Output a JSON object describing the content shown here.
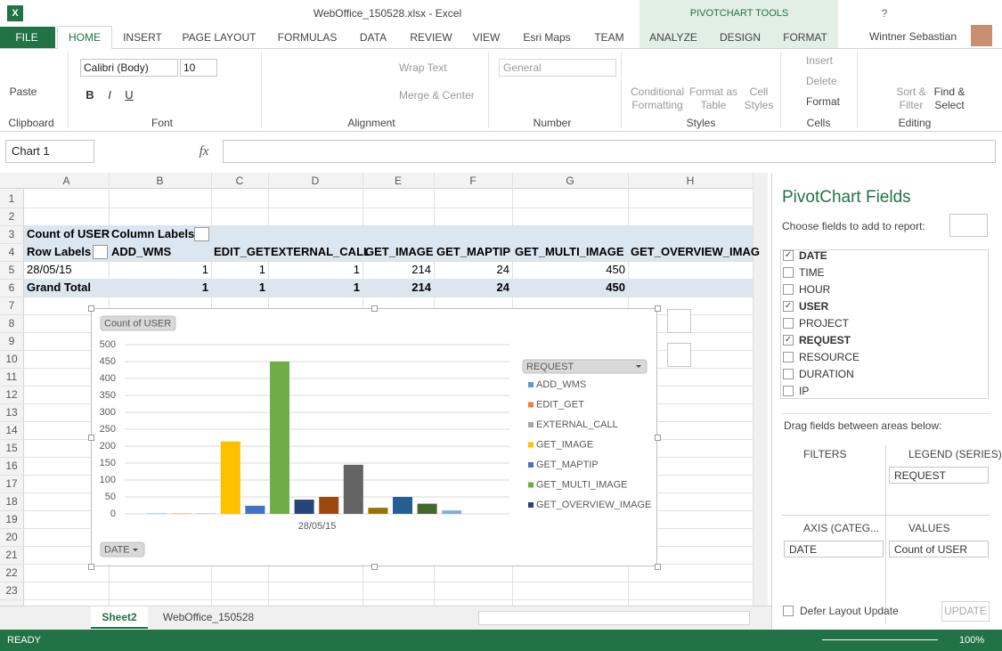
{
  "window": {
    "title": "WebOffice_150528.xlsx - Excel",
    "context_tab": "PIVOTCHART TOOLS",
    "user": "Wintner Sebastian",
    "help": "?"
  },
  "tabs": [
    "FILE",
    "HOME",
    "INSERT",
    "PAGE LAYOUT",
    "FORMULAS",
    "DATA",
    "REVIEW",
    "VIEW",
    "Esri Maps",
    "TEAM",
    "ANALYZE",
    "DESIGN",
    "FORMAT"
  ],
  "ribbon": {
    "labels": [
      "Paste",
      "Clipboard",
      "Font",
      "Wrap Text",
      "Merge & Center",
      "Alignment",
      "Number",
      "Conditional",
      "Formatting",
      "Format as",
      "Table",
      "Cell",
      "Styles",
      "Styles",
      "Insert",
      "Delete",
      "Format",
      "Cells",
      "Sort &",
      "Filter",
      "Find &",
      "Select",
      "Editing"
    ],
    "font_name": "Calibri (Body)",
    "font_size": "10",
    "number_format": "General",
    "font_buttons": [
      "B",
      "I",
      "U"
    ]
  },
  "formula_bar": {
    "name_box": "Chart 1",
    "fx": "fx"
  },
  "sheet": {
    "columns": [
      "A",
      "B",
      "C",
      "D",
      "E",
      "F",
      "G",
      "H"
    ],
    "rows": [
      1,
      2,
      3,
      4,
      5,
      6,
      7,
      8,
      9,
      10,
      11,
      12,
      13,
      14,
      15,
      16,
      17,
      18,
      19,
      20,
      21,
      22,
      23
    ],
    "pivot": {
      "corner": [
        "Count of USER",
        "Column Labels"
      ],
      "header": [
        "Row Labels",
        "ADD_WMS",
        "EDIT_GET",
        "EXTERNAL_CALL",
        "GET_IMAGE",
        "GET_MAPTIP",
        "GET_MULTI_IMAGE",
        "GET_OVERVIEW_IMAG"
      ],
      "rows": [
        [
          "28/05/15",
          1,
          1,
          1,
          214,
          24,
          450
        ],
        [
          "Grand Total",
          1,
          1,
          1,
          214,
          24,
          450
        ]
      ]
    },
    "tabs": [
      "Sheet2",
      "WebOffice_150528"
    ]
  },
  "status": {
    "mode": "READY",
    "zoom": "100%"
  },
  "pane": {
    "title": "PivotChart Fields",
    "subtitle": "Choose fields to add to report:",
    "fields": [
      {
        "name": "DATE",
        "checked": true
      },
      {
        "name": "TIME",
        "checked": false
      },
      {
        "name": "HOUR",
        "checked": false
      },
      {
        "name": "USER",
        "checked": true
      },
      {
        "name": "PROJECT",
        "checked": false
      },
      {
        "name": "REQUEST",
        "checked": true
      },
      {
        "name": "RESOURCE",
        "checked": false
      },
      {
        "name": "DURATION",
        "checked": false
      },
      {
        "name": "IP",
        "checked": false
      }
    ],
    "hint": "Drag fields between areas below:",
    "filters": "FILTERS",
    "legend": {
      "label": "LEGEND (SERIES)",
      "item": "REQUEST"
    },
    "axis": {
      "label": "AXIS (CATEG...",
      "item": "DATE"
    },
    "values": {
      "label": "VALUES",
      "item": "Count of USER"
    },
    "defer": "Defer Layout Update",
    "update": "UPDATE"
  },
  "chart_data": {
    "type": "bar",
    "categories": [
      "28/05/15"
    ],
    "y_button": "Count of USER",
    "legend_title": "REQUEST",
    "axis_button": "DATE",
    "ylim": [
      0,
      500
    ],
    "yticks": [
      0,
      50,
      100,
      150,
      200,
      250,
      300,
      350,
      400,
      450,
      500
    ],
    "grid": true,
    "series": [
      {
        "name": "ADD_WMS",
        "color": "#5b9bd5",
        "values": [
          1
        ]
      },
      {
        "name": "EDIT_GET",
        "color": "#ed7d31",
        "values": [
          1
        ]
      },
      {
        "name": "EXTERNAL_CALL",
        "color": "#a5a5a5",
        "values": [
          1
        ]
      },
      {
        "name": "GET_IMAGE",
        "color": "#ffc000",
        "values": [
          214
        ]
      },
      {
        "name": "GET_MAPTIP",
        "color": "#4472c4",
        "values": [
          24
        ]
      },
      {
        "name": "GET_MULTI_IMAGE",
        "color": "#70ad47",
        "values": [
          450
        ]
      },
      {
        "name": "GET_OVERVIEW_IMAGE",
        "color": "#264478",
        "values": [
          42
        ]
      },
      {
        "color": "#9e480e",
        "values": [
          50
        ]
      },
      {
        "color": "#636363",
        "values": [
          145
        ]
      },
      {
        "color": "#997300",
        "values": [
          18
        ]
      },
      {
        "color": "#255e91",
        "values": [
          50
        ]
      },
      {
        "color": "#43682b",
        "values": [
          30
        ]
      },
      {
        "color": "#7cafdd",
        "values": [
          10
        ]
      }
    ]
  }
}
